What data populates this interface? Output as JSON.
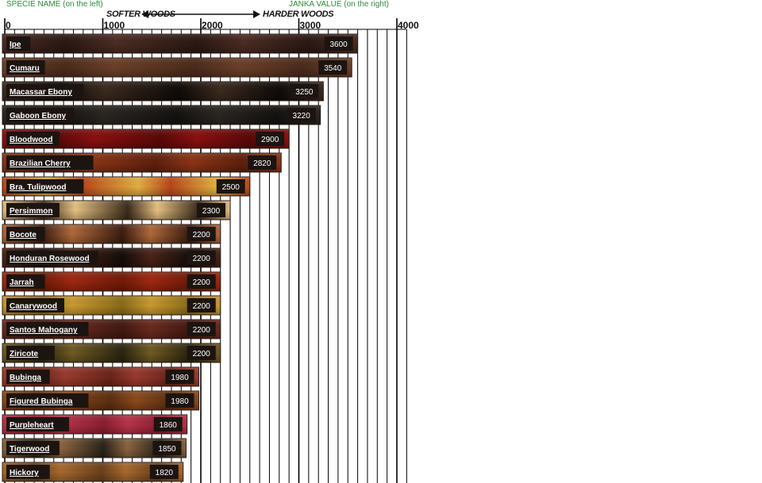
{
  "header": {
    "left_caption": "SPECIE NAME (on the left)",
    "right_caption": "JANKA VALUE (on the right)",
    "softer": "SOFTER WOODS",
    "harder": "HARDER WOODS"
  },
  "colors": {
    "caption": "#2e8b3a",
    "grid": "#000000",
    "label_box": "#1c1410",
    "value_box": "#1c1410"
  },
  "chart_data": {
    "type": "bar",
    "orientation": "horizontal",
    "xlim": [
      0,
      4100
    ],
    "xticks": [
      0,
      1000,
      2000,
      3000,
      4000
    ],
    "gridlines": "every 100",
    "categories": [
      "Ipe",
      "Cumaru",
      "Macassar Ebony",
      "Gaboon Ebony",
      "Bloodwood",
      "Brazilian Cherry",
      "Bra. Tulipwood",
      "Persimmon",
      "Bocote",
      "Honduran Rosewood",
      "Jarrah",
      "Canarywood",
      "Santos Mahogany",
      "Ziricote",
      "Bubinga",
      "Figured Bubinga",
      "Purpleheart",
      "Tigerwood",
      "Hickory"
    ],
    "values": [
      3600,
      3540,
      3250,
      3220,
      2900,
      2820,
      2500,
      2300,
      2200,
      2200,
      2200,
      2200,
      2200,
      2200,
      1980,
      1980,
      1860,
      1850,
      1820
    ],
    "bar_colors": [
      "#4a2c22",
      "#6b3f28",
      "#3b2a1e",
      "#2a2622",
      "#8a0f0f",
      "#8c3416",
      "#b8461a",
      "#e6c182",
      "#b0693a",
      "#4a2418",
      "#9e2810",
      "#c99a30",
      "#6a2a1e",
      "#6f5a22",
      "#9a3a2e",
      "#8c4a1c",
      "#b8344a",
      "#8a6440",
      "#a8692e"
    ],
    "bar_grain": [
      "#2a1812",
      "#4a2a1a",
      "#0e0a08",
      "#141210",
      "#5a0808",
      "#5e200c",
      "#e0b040",
      "#3a2a1a",
      "#3a1c10",
      "#140c08",
      "#701a08",
      "#8a6a18",
      "#401810",
      "#2a2410",
      "#6a2418",
      "#5a2e10",
      "#8a1e30",
      "#2a2218",
      "#6a401a"
    ]
  }
}
